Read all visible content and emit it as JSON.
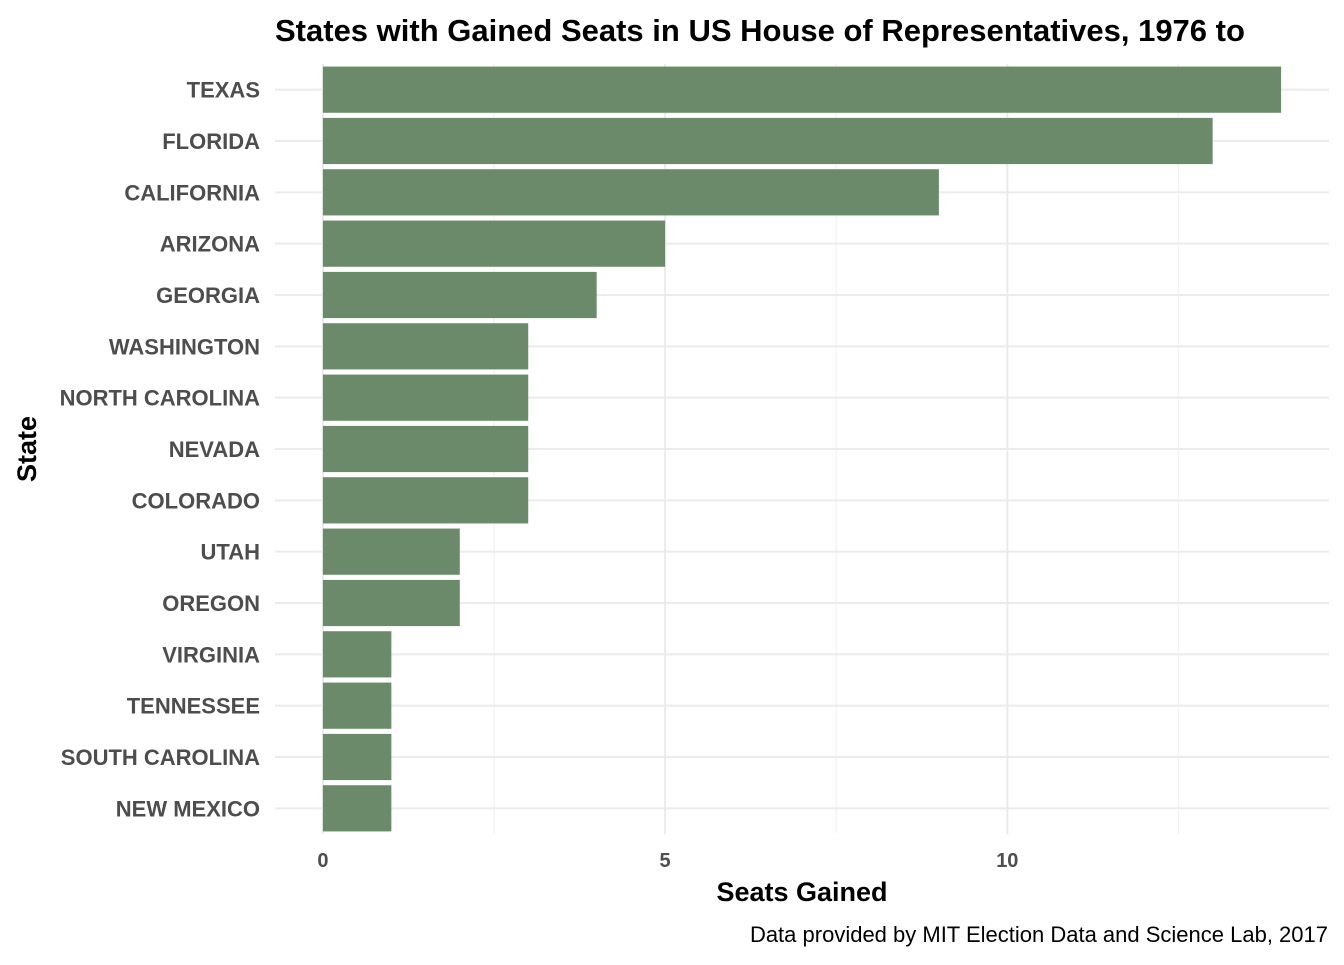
{
  "chart_data": {
    "type": "bar",
    "orientation": "horizontal",
    "title": "States with Gained Seats in US House of Representatives, 1976 to",
    "xlabel": "Seats Gained",
    "ylabel": "State",
    "caption": "Data provided by MIT Election Data and Science Lab, 2017",
    "categories": [
      "TEXAS",
      "FLORIDA",
      "CALIFORNIA",
      "ARIZONA",
      "GEORGIA",
      "WASHINGTON",
      "NORTH CAROLINA",
      "NEVADA",
      "COLORADO",
      "UTAH",
      "OREGON",
      "VIRGINIA",
      "TENNESSEE",
      "SOUTH CAROLINA",
      "NEW MEXICO"
    ],
    "values": [
      14,
      13,
      9,
      5,
      4,
      3,
      3,
      3,
      3,
      2,
      2,
      1,
      1,
      1,
      1
    ],
    "xlim": [
      -0.7,
      14.7
    ],
    "x_ticks": [
      0,
      5,
      10
    ],
    "x_tick_labels": [
      "0",
      "5",
      "10"
    ],
    "grid": true,
    "legend": "none",
    "colors": {
      "bar": "#6a8a6a",
      "grid": "#ebebeb",
      "text": "#4d4d4d"
    }
  }
}
